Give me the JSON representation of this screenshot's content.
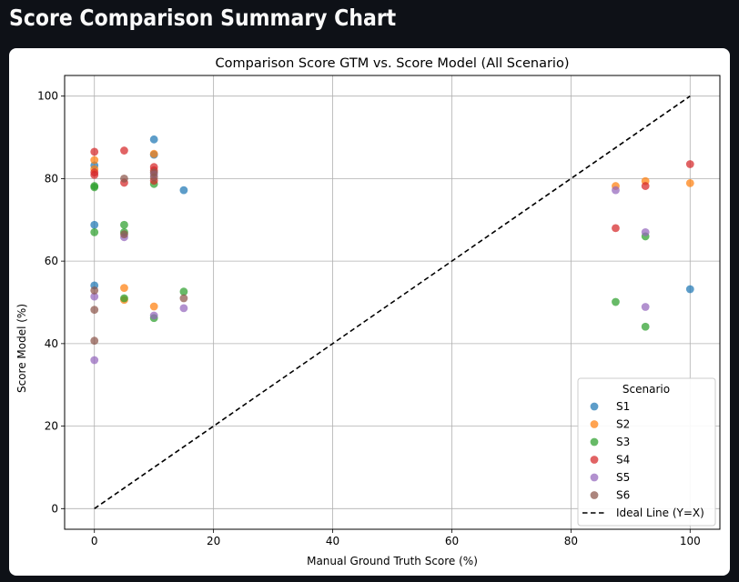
{
  "page": {
    "title": "Score Comparison Summary Chart"
  },
  "chart_data": {
    "type": "scatter",
    "title": "Comparison Score GTM vs. Score Model (All Scenario)",
    "xlabel": "Manual Ground Truth Score (%)",
    "ylabel": "Score Model (%)",
    "xlim": [
      -5,
      105
    ],
    "ylim": [
      -5,
      105
    ],
    "xticks": [
      "0",
      "20",
      "40",
      "60",
      "80",
      "100"
    ],
    "yticks": [
      "0",
      "20",
      "40",
      "60",
      "80",
      "100"
    ],
    "grid": true,
    "legend": {
      "title": "Scenario",
      "placement": "lower-right"
    },
    "series": [
      {
        "name": "S1",
        "color": "#1f77b4",
        "points": [
          [
            0,
            83.2
          ],
          [
            0,
            68.8
          ],
          [
            0,
            54.1
          ],
          [
            10,
            89.5
          ],
          [
            10,
            85.8
          ],
          [
            15,
            77.2
          ],
          [
            100,
            53.2
          ]
        ]
      },
      {
        "name": "S2",
        "color": "#ff7f0e",
        "points": [
          [
            0,
            84.5
          ],
          [
            0,
            82.3
          ],
          [
            5,
            53.5
          ],
          [
            5,
            50.6
          ],
          [
            10,
            86.0
          ],
          [
            10,
            49.0
          ],
          [
            87.5,
            78.2
          ],
          [
            92.5,
            79.4
          ],
          [
            100,
            78.9
          ]
        ]
      },
      {
        "name": "S3",
        "color": "#2ca02c",
        "points": [
          [
            0,
            78.2
          ],
          [
            0,
            77.9
          ],
          [
            0,
            67.0
          ],
          [
            5,
            68.8
          ],
          [
            5,
            67.0
          ],
          [
            5,
            51.0
          ],
          [
            10,
            78.7
          ],
          [
            10,
            46.2
          ],
          [
            15,
            52.6
          ],
          [
            87.5,
            50.1
          ],
          [
            92.5,
            66.0
          ],
          [
            92.5,
            44.1
          ]
        ]
      },
      {
        "name": "S4",
        "color": "#d62728",
        "points": [
          [
            0,
            86.5
          ],
          [
            0,
            81.5
          ],
          [
            0,
            80.9
          ],
          [
            5,
            86.8
          ],
          [
            5,
            79.0
          ],
          [
            10,
            82.8
          ],
          [
            10,
            82.0
          ],
          [
            10,
            79.5
          ],
          [
            87.5,
            68.0
          ],
          [
            92.5,
            78.2
          ],
          [
            100,
            83.5
          ]
        ]
      },
      {
        "name": "S5",
        "color": "#9467bd",
        "points": [
          [
            0,
            51.4
          ],
          [
            0,
            36.0
          ],
          [
            5,
            65.8
          ],
          [
            10,
            81.0
          ],
          [
            10,
            46.8
          ],
          [
            15,
            48.6
          ],
          [
            87.5,
            77.2
          ],
          [
            92.5,
            67.0
          ],
          [
            92.5,
            48.9
          ]
        ]
      },
      {
        "name": "S6",
        "color": "#8c564b",
        "points": [
          [
            0,
            52.9
          ],
          [
            0,
            48.2
          ],
          [
            0,
            40.7
          ],
          [
            5,
            80.0
          ],
          [
            5,
            66.5
          ],
          [
            10,
            81.5
          ],
          [
            10,
            80.3
          ],
          [
            15,
            51.0
          ]
        ]
      }
    ],
    "reference_line": {
      "name": "Ideal Line (Y=X)",
      "from": [
        0,
        0
      ],
      "to": [
        100,
        100
      ],
      "color": "#000000",
      "style": "dashed"
    }
  }
}
